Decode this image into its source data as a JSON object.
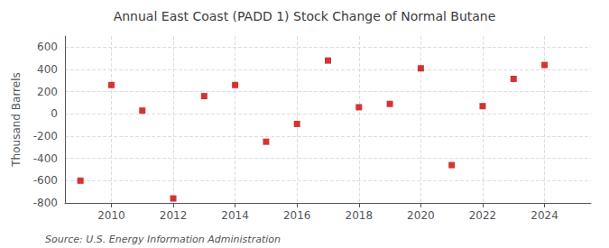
{
  "chart_data": {
    "type": "scatter",
    "title": "Annual East Coast (PADD 1) Stock Change of Normal Butane",
    "ylabel": "Thousand Barrels",
    "annotations": [
      "Source: U.S. Energy Information Administration"
    ],
    "x": [
      2009,
      2010,
      2011,
      2012,
      2013,
      2014,
      2015,
      2016,
      2017,
      2018,
      2019,
      2020,
      2021,
      2022,
      2023,
      2024
    ],
    "values": [
      -600,
      260,
      30,
      -760,
      160,
      260,
      -250,
      -90,
      480,
      60,
      90,
      410,
      -460,
      70,
      315,
      440
    ],
    "color": "#cc0000",
    "marker": "square",
    "xlim": [
      2008.5,
      2025.5
    ],
    "xticks": [
      2010,
      2012,
      2014,
      2016,
      2018,
      2020,
      2022,
      2024
    ],
    "ylim": [
      -800,
      700
    ],
    "yticks": [
      -800,
      -600,
      -400,
      -200,
      0,
      200,
      400,
      600
    ],
    "grid": true
  }
}
